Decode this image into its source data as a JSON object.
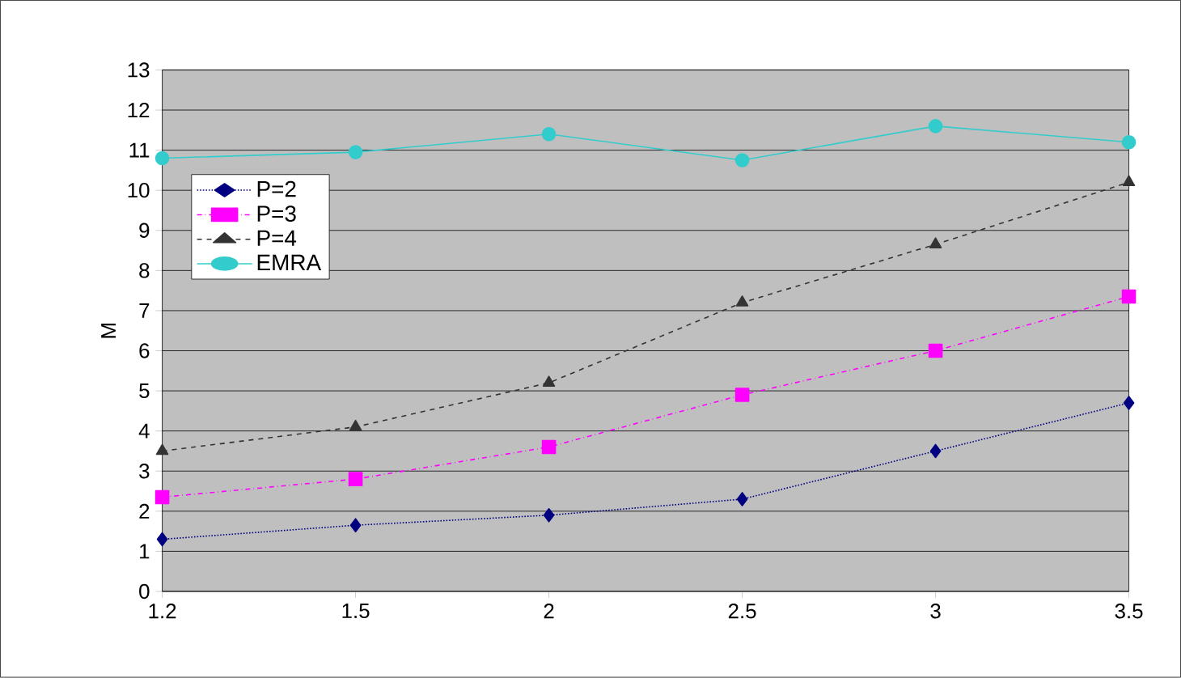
{
  "chart_data": {
    "type": "line",
    "ylabel": "M",
    "categories": [
      "1.2",
      "1.5",
      "2",
      "2.5",
      "3",
      "3.5"
    ],
    "series": [
      {
        "name": "P=2",
        "color": "#000080",
        "marker": "diamond",
        "line_style": "dotted",
        "values": [
          1.3,
          1.65,
          1.9,
          2.3,
          3.5,
          4.7
        ]
      },
      {
        "name": "P=3",
        "color": "#ff00ff",
        "marker": "square",
        "line_style": "dashdot",
        "values": [
          2.35,
          2.8,
          3.6,
          4.9,
          6.0,
          7.35
        ]
      },
      {
        "name": "P=4",
        "color": "#333333",
        "marker": "triangle",
        "line_style": "dashed",
        "values": [
          3.5,
          4.1,
          5.2,
          7.2,
          8.65,
          10.2
        ]
      },
      {
        "name": "EMRA",
        "color": "#33cccc",
        "marker": "circle",
        "line_style": "solid",
        "values": [
          10.8,
          10.95,
          11.4,
          10.75,
          11.6,
          11.2
        ]
      }
    ],
    "ylim": [
      0,
      13
    ],
    "yticks": [
      0,
      1,
      2,
      3,
      4,
      5,
      6,
      7,
      8,
      9,
      10,
      11,
      12,
      13
    ],
    "grid": "y",
    "legend": "top left"
  }
}
